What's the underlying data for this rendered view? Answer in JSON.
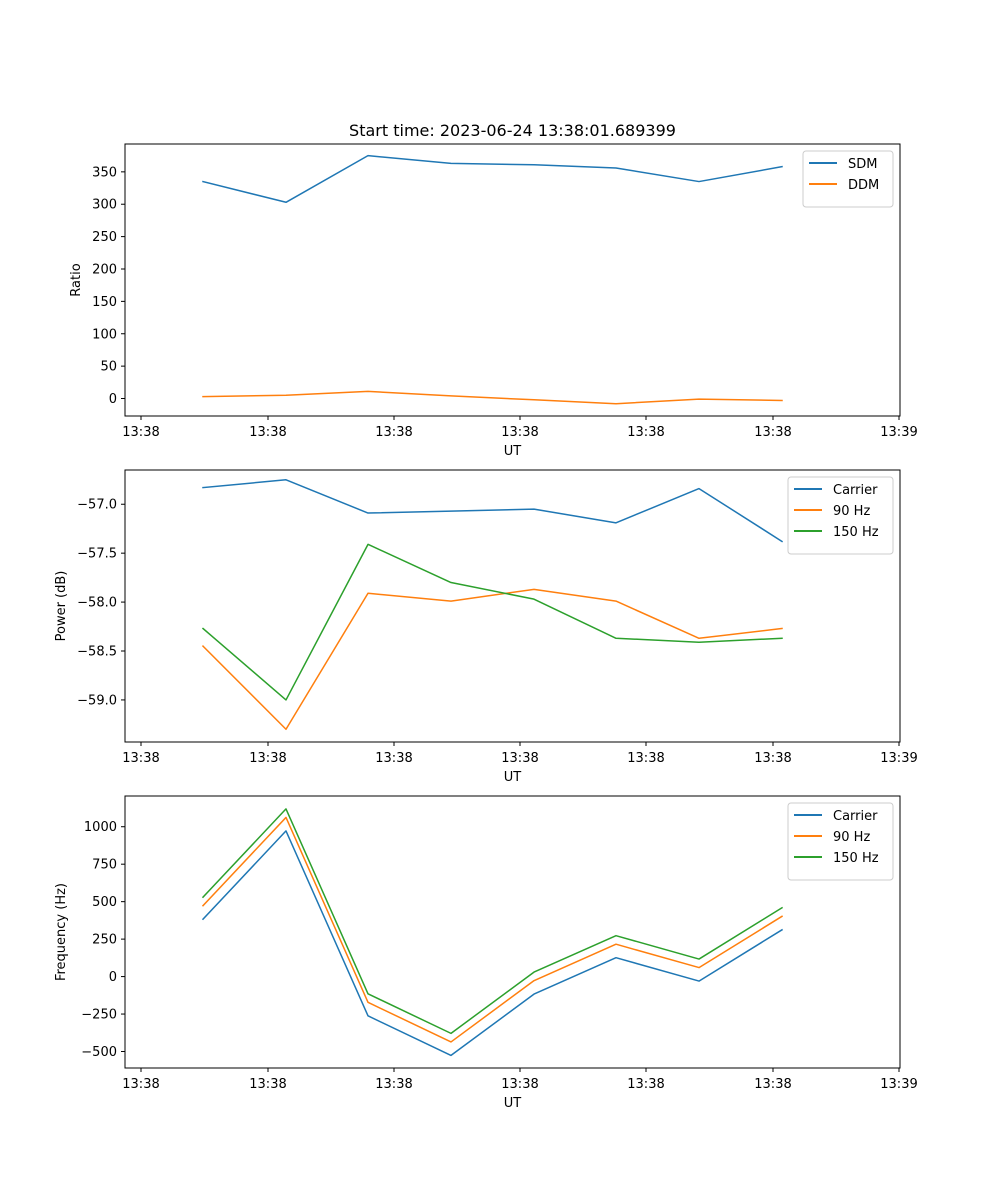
{
  "figure": {
    "title": "Start time: 2023-06-24 13:38:01.689399"
  },
  "chart_data": [
    {
      "type": "line",
      "title": "Start time: 2023-06-24 13:38:01.689399",
      "xlabel": "UT",
      "ylabel": "Ratio",
      "x_tick_labels": [
        "13:38",
        "13:38",
        "13:38",
        "13:38",
        "13:38",
        "13:38",
        "13:39"
      ],
      "x_point_labels": [
        "13:38",
        "13:38",
        "13:38",
        "13:38",
        "13:38",
        "13:38",
        "13:38",
        "13:38"
      ],
      "yticks": [
        0,
        50,
        100,
        150,
        200,
        250,
        300,
        350
      ],
      "ylim": [
        -27,
        393
      ],
      "grid": false,
      "legend_position": "upper right",
      "series": [
        {
          "name": "SDM",
          "color": "#1f77b4",
          "values": [
            335,
            303,
            375,
            363,
            361,
            356,
            335,
            358
          ]
        },
        {
          "name": "DDM",
          "color": "#ff7f0e",
          "values": [
            3,
            5,
            11,
            4,
            -2,
            -8,
            -1,
            -3
          ]
        }
      ]
    },
    {
      "type": "line",
      "xlabel": "UT",
      "ylabel": "Power (dB)",
      "x_tick_labels": [
        "13:38",
        "13:38",
        "13:38",
        "13:38",
        "13:38",
        "13:38",
        "13:39"
      ],
      "x_point_labels": [
        "13:38",
        "13:38",
        "13:38",
        "13:38",
        "13:38",
        "13:38",
        "13:38",
        "13:38"
      ],
      "yticks": [
        -57.0,
        -57.5,
        -58.0,
        -58.5,
        -59.0
      ],
      "ytick_labels": [
        "−57.0",
        "−57.5",
        "−58.0",
        "−58.5",
        "−59.0"
      ],
      "ylim": [
        -59.43,
        -56.65
      ],
      "grid": false,
      "legend_position": "upper right",
      "series": [
        {
          "name": "Carrier",
          "color": "#1f77b4",
          "values": [
            -56.83,
            -56.75,
            -57.09,
            -57.07,
            -57.05,
            -57.19,
            -56.84,
            -57.38
          ]
        },
        {
          "name": "90 Hz",
          "color": "#ff7f0e",
          "values": [
            -58.45,
            -59.3,
            -57.91,
            -57.99,
            -57.87,
            -57.99,
            -58.37,
            -58.27
          ]
        },
        {
          "name": "150 Hz",
          "color": "#2ca02c",
          "values": [
            -58.27,
            -59.0,
            -57.41,
            -57.8,
            -57.97,
            -58.37,
            -58.41,
            -58.37
          ]
        }
      ]
    },
    {
      "type": "line",
      "xlabel": "UT",
      "ylabel": "Frequency (Hz)",
      "x_tick_labels": [
        "13:38",
        "13:38",
        "13:38",
        "13:38",
        "13:38",
        "13:38",
        "13:39"
      ],
      "x_point_labels": [
        "13:38",
        "13:38",
        "13:38",
        "13:38",
        "13:38",
        "13:38",
        "13:38",
        "13:38"
      ],
      "yticks": [
        1000,
        750,
        500,
        250,
        0,
        -250,
        -500
      ],
      "ytick_labels": [
        "1000",
        "750",
        "500",
        "250",
        "0",
        "−250",
        "−500"
      ],
      "ylim": [
        -610,
        1205
      ],
      "grid": false,
      "legend_position": "upper right",
      "series": [
        {
          "name": "Carrier",
          "color": "#1f77b4",
          "values": [
            383,
            972,
            -262,
            -526,
            -117,
            126,
            -30,
            312
          ]
        },
        {
          "name": "90 Hz",
          "color": "#ff7f0e",
          "values": [
            473,
            1062,
            -172,
            -436,
            -27,
            216,
            60,
            402
          ]
        },
        {
          "name": "150 Hz",
          "color": "#2ca02c",
          "values": [
            530,
            1119,
            -115,
            -379,
            30,
            273,
            117,
            459
          ]
        }
      ]
    }
  ]
}
